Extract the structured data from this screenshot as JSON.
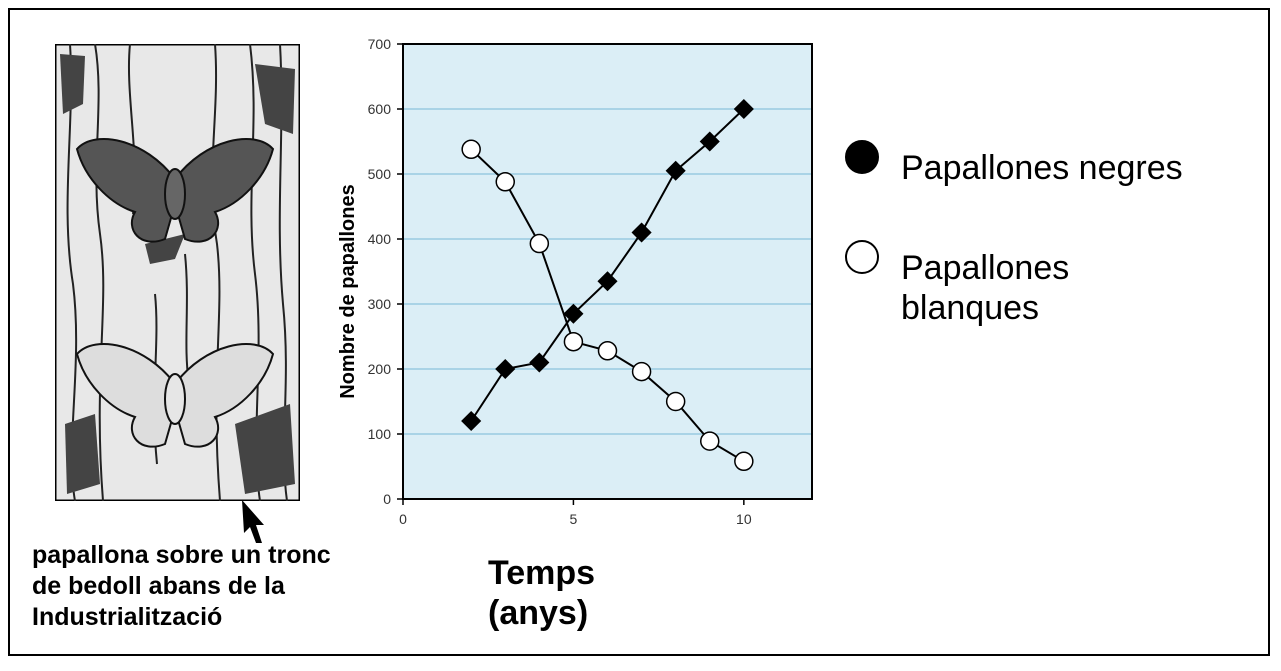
{
  "caption": "papallona sobre un tronc de bedoll abans de la Industrialització",
  "legend": {
    "black": {
      "label": "Papallones negres",
      "color": "#000000"
    },
    "white": {
      "label": "Papallones blanques",
      "color": "#ffffff"
    }
  },
  "chart_data": {
    "type": "line",
    "xlabel": "Temps (anys)",
    "ylabel": "Nombre de papallones",
    "xlim": [
      0,
      12
    ],
    "ylim": [
      0,
      700
    ],
    "xticks": [
      0,
      5,
      10
    ],
    "yticks": [
      0,
      100,
      200,
      300,
      400,
      500,
      600,
      700
    ],
    "grid": "horizontal",
    "background": "#dbeef6",
    "gridColor": "#a9d3e6",
    "series": [
      {
        "name": "Papallones negres",
        "marker": "diamond",
        "color": "#000000",
        "x": [
          2,
          3,
          4,
          5,
          6,
          7,
          8,
          9,
          10
        ],
        "y": [
          120,
          200,
          210,
          285,
          335,
          410,
          505,
          550,
          600
        ]
      },
      {
        "name": "Papallones blanques",
        "marker": "circle",
        "color": "#ffffff",
        "x": [
          2,
          3,
          4,
          5,
          6,
          7,
          8,
          9,
          10
        ],
        "y": [
          538,
          488,
          393,
          242,
          228,
          196,
          150,
          89,
          58
        ]
      }
    ]
  }
}
